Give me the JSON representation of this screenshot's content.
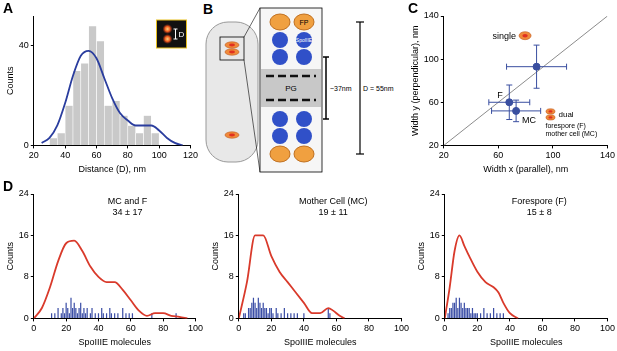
{
  "chart_data": [
    {
      "panel": "A",
      "type": "histogram",
      "x_label": "Distance (D), nm",
      "y_label": "Counts",
      "series": [
        {
          "type": "bar",
          "bins": [
            30,
            35,
            40,
            45,
            50,
            55,
            60,
            65,
            70,
            75,
            80,
            85,
            90,
            95,
            100
          ],
          "values": [
            3,
            5,
            16,
            30,
            33,
            48,
            42,
            16,
            18,
            12,
            8,
            5,
            12,
            5
          ],
          "color": "#c9c9c9"
        },
        {
          "type": "line",
          "x": [
            25,
            30,
            35,
            40,
            45,
            50,
            55,
            60,
            65,
            70,
            75,
            80,
            85,
            90,
            95,
            100,
            105,
            110,
            115
          ],
          "values": [
            1,
            3,
            8,
            17,
            28,
            36,
            38,
            35,
            27,
            19,
            13,
            10,
            8,
            8,
            8,
            6,
            3,
            1,
            0
          ],
          "color": "#2a3d9e"
        }
      ],
      "xlim": [
        20,
        120
      ],
      "xticks": [
        20,
        40,
        60,
        80,
        100,
        120
      ],
      "ylim": [
        0,
        52
      ],
      "yticks": [
        0,
        40
      ],
      "grid": false,
      "annotations": [
        "D"
      ]
    },
    {
      "panel": "C",
      "type": "scatter",
      "x_label": "Width x (parallel), nm",
      "y_label": "Width y (perpendicular), nm",
      "series": [
        {
          "type": "line",
          "x": [
            20,
            140
          ],
          "values": [
            20,
            140
          ],
          "color": "#8c8c8c"
        },
        {
          "name": "single",
          "x": [
            88
          ],
          "values": [
            93
          ],
          "x_err": [
            22
          ],
          "y_err": [
            20
          ],
          "color": "#3a4fa0"
        },
        {
          "name": "F",
          "x": [
            68
          ],
          "values": [
            60
          ],
          "x_err": [
            15
          ],
          "y_err": [
            16
          ],
          "color": "#3a4fa0"
        },
        {
          "name": "MC",
          "x": [
            73
          ],
          "values": [
            52
          ],
          "x_err": [
            18
          ],
          "y_err": [
            10
          ],
          "color": "#3a4fa0"
        }
      ],
      "xlim": [
        20,
        140
      ],
      "xticks": [
        20,
        60,
        100,
        140
      ],
      "ylim": [
        20,
        140
      ],
      "yticks": [
        20,
        60,
        100,
        140
      ],
      "grid": false,
      "annotations": [
        "dual",
        "forespore (F)",
        "mother cell (MC)"
      ]
    },
    {
      "panel": "D",
      "type": "histogram",
      "x_label": "SpoIIIE molecules",
      "y_label": "Counts",
      "series": [
        {
          "type": "bar",
          "x": [
            11,
            13,
            15,
            17,
            18,
            19,
            20,
            21,
            22,
            23,
            24,
            25,
            26,
            27,
            28,
            29,
            30,
            31,
            32,
            33,
            35,
            36,
            38,
            40,
            42,
            43,
            45,
            47,
            48,
            50,
            52,
            55,
            57,
            59,
            61,
            73,
            88
          ],
          "values": [
            1,
            1,
            2,
            1,
            2,
            1,
            3,
            2,
            1,
            4,
            2,
            3,
            2,
            1,
            2,
            3,
            1,
            2,
            1,
            2,
            1,
            2,
            1,
            1,
            2,
            1,
            1,
            2,
            1,
            1,
            1,
            2,
            1,
            1,
            1,
            1,
            1
          ],
          "color": "#3b4ea6"
        },
        {
          "type": "line",
          "x": [
            0,
            5,
            10,
            15,
            20,
            25,
            30,
            35,
            40,
            45,
            50,
            55,
            60,
            65,
            70,
            75,
            80,
            85,
            90,
            95
          ],
          "values": [
            0,
            2,
            6,
            11,
            14.5,
            15,
            13,
            10,
            8,
            7,
            7,
            5.5,
            3.5,
            1.5,
            0.5,
            1,
            1,
            0.5,
            0.3,
            0
          ],
          "color": "#d93a2b"
        }
      ],
      "xlim": [
        0,
        100
      ],
      "xticks": [
        0,
        20,
        40,
        60,
        80,
        100
      ],
      "ylim": [
        0,
        24
      ],
      "yticks": [
        0,
        8,
        16,
        24
      ],
      "grid": false,
      "annotations": [
        "MC and F",
        "34 ± 17"
      ]
    },
    {
      "type": "histogram",
      "x_label": "SpoIIIE molecules",
      "y_label": "Counts",
      "series": [
        {
          "type": "bar",
          "x": [
            3,
            4,
            6,
            7,
            8,
            9,
            10,
            11,
            12,
            13,
            14,
            15,
            16,
            17,
            18,
            19,
            20,
            21,
            23,
            24,
            26,
            28,
            30,
            32,
            34,
            36,
            40,
            55,
            56
          ],
          "values": [
            1,
            1,
            2,
            2,
            3,
            4,
            3,
            2,
            4,
            3,
            2,
            3,
            2,
            2,
            1,
            2,
            2,
            1,
            2,
            1,
            1,
            2,
            1,
            1,
            1,
            1,
            1,
            2,
            1
          ],
          "color": "#3b4ea6"
        },
        {
          "type": "line",
          "x": [
            0,
            5,
            10,
            15,
            20,
            25,
            30,
            35,
            40,
            45,
            50,
            55,
            58,
            62,
            65
          ],
          "values": [
            0,
            7,
            16,
            16,
            12,
            9,
            7,
            5,
            3,
            1,
            1,
            2,
            1.5,
            0.5,
            0
          ],
          "color": "#d93a2b"
        }
      ],
      "xlim": [
        0,
        100
      ],
      "xticks": [
        0,
        20,
        40,
        60,
        80,
        100
      ],
      "ylim": [
        0,
        24
      ],
      "yticks": [
        0,
        8,
        16,
        24
      ],
      "grid": false,
      "annotations": [
        "Mother Cell (MC)",
        "19 ± 11"
      ]
    },
    {
      "type": "histogram",
      "x_label": "SpoIIIE molecules",
      "y_label": "Counts",
      "series": [
        {
          "type": "bar",
          "x": [
            2,
            3,
            4,
            5,
            6,
            7,
            8,
            9,
            10,
            11,
            12,
            13,
            14,
            15,
            16,
            17,
            18,
            19,
            20,
            22,
            24,
            26,
            28,
            30,
            32,
            34,
            36
          ],
          "values": [
            1,
            2,
            2,
            3,
            3,
            4,
            2,
            4,
            3,
            2,
            3,
            2,
            2,
            2,
            1,
            2,
            1,
            1,
            1,
            1,
            2,
            1,
            1,
            2,
            1,
            1,
            1
          ],
          "color": "#3b4ea6"
        },
        {
          "type": "line",
          "x": [
            0,
            3,
            6,
            9,
            12,
            15,
            20,
            25,
            30,
            33,
            36,
            40,
            45
          ],
          "values": [
            0,
            6,
            13,
            16,
            14,
            12,
            9,
            7,
            6,
            5,
            3,
            1,
            0
          ],
          "color": "#d93a2b"
        }
      ],
      "xlim": [
        0,
        100
      ],
      "xticks": [
        0,
        20,
        40,
        60,
        80,
        100
      ],
      "ylim": [
        0,
        24
      ],
      "yticks": [
        0,
        8,
        16,
        24
      ],
      "grid": false,
      "annotations": [
        "Forespore (F)",
        "15 ± 8"
      ]
    }
  ],
  "diagram": {
    "panel": "B",
    "labels": {
      "fp": "FP",
      "protein": "SpoIIIE",
      "wall": "PG",
      "gap": "~37nm",
      "distance": "D = 55nm"
    }
  }
}
